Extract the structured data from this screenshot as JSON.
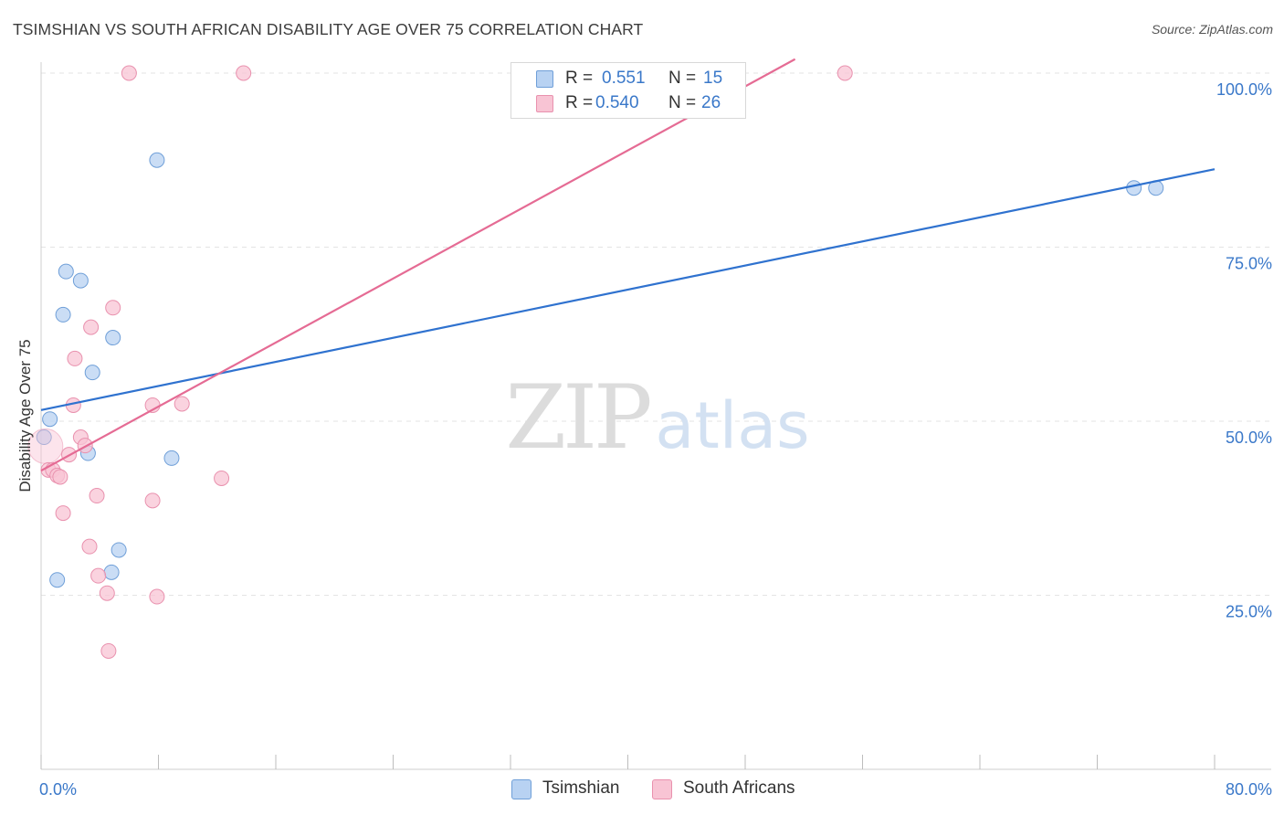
{
  "title": "TSIMSHIAN VS SOUTH AFRICAN DISABILITY AGE OVER 75 CORRELATION CHART",
  "source": "Source: ZipAtlas.com",
  "watermark": {
    "zip": "ZIP",
    "atlas": "atlas"
  },
  "legend_top": {
    "rows": [
      {
        "r_label": "R =",
        "r_value": "0.551",
        "n_label": "N =",
        "n_value": "15"
      },
      {
        "r_label": "R =",
        "r_value": "0.540",
        "n_label": "N =",
        "n_value": "26"
      }
    ]
  },
  "legend_bottom": {
    "items": [
      "Tsimshian",
      "South Africans"
    ]
  },
  "colors": {
    "blue_fill": "#b8d2f2",
    "blue_stroke": "#6f9fd8",
    "blue_line": "#2f72cf",
    "pink_fill": "#f8c4d4",
    "pink_stroke": "#e991ae",
    "pink_line": "#e56b94",
    "axis_text": "#3a78c9",
    "grid": "#e3e3e3"
  },
  "chart_data": {
    "type": "scatter",
    "title": "TSIMSHIAN VS SOUTH AFRICAN DISABILITY AGE OVER 75 CORRELATION CHART",
    "xlabel": "",
    "ylabel": "Disability Age Over 75",
    "xlim": [
      0,
      80
    ],
    "ylim": [
      0,
      102
    ],
    "x_tick_labels": [
      "0.0%",
      "80.0%"
    ],
    "y_ticks": [
      25,
      50,
      75,
      100
    ],
    "y_tick_labels": [
      "25.0%",
      "50.0%",
      "75.0%",
      "100.0%"
    ],
    "grid": true,
    "series": [
      {
        "name": "Tsimshian",
        "r": 0.551,
        "n": 15,
        "points": [
          [
            0.2,
            47.7
          ],
          [
            0.6,
            50.3
          ],
          [
            1.1,
            27.2
          ],
          [
            1.5,
            65.3
          ],
          [
            1.7,
            71.5
          ],
          [
            2.7,
            70.2
          ],
          [
            3.2,
            45.4
          ],
          [
            3.5,
            57.0
          ],
          [
            4.8,
            28.3
          ],
          [
            4.9,
            62.0
          ],
          [
            5.3,
            31.5
          ],
          [
            7.9,
            87.5
          ],
          [
            8.9,
            44.7
          ],
          [
            74.5,
            83.5
          ],
          [
            76.0,
            83.5
          ]
        ],
        "trend": {
          "x": [
            0,
            80
          ],
          "y": [
            51.6,
            86.2
          ]
        }
      },
      {
        "name": "South Africans",
        "r": 0.54,
        "n": 26,
        "points": [
          [
            0.3,
            46.4
          ],
          [
            0.5,
            43.0
          ],
          [
            0.8,
            43.0
          ],
          [
            1.1,
            42.2
          ],
          [
            1.3,
            42.0
          ],
          [
            1.5,
            36.8
          ],
          [
            1.9,
            45.2
          ],
          [
            2.2,
            52.3
          ],
          [
            2.3,
            59.0
          ],
          [
            2.7,
            47.7
          ],
          [
            3.0,
            46.5
          ],
          [
            3.3,
            32.0
          ],
          [
            3.4,
            63.5
          ],
          [
            3.8,
            39.3
          ],
          [
            3.9,
            27.8
          ],
          [
            4.5,
            25.3
          ],
          [
            4.6,
            17.0
          ],
          [
            4.9,
            66.3
          ],
          [
            6.0,
            100.0
          ],
          [
            7.6,
            52.3
          ],
          [
            7.6,
            38.6
          ],
          [
            7.9,
            24.8
          ],
          [
            9.6,
            52.5
          ],
          [
            12.3,
            41.8
          ],
          [
            13.8,
            100.0
          ],
          [
            54.8,
            100.0
          ]
        ],
        "trend": {
          "x": [
            0,
            51.4
          ],
          "y": [
            42.9,
            102.0
          ]
        }
      }
    ]
  }
}
